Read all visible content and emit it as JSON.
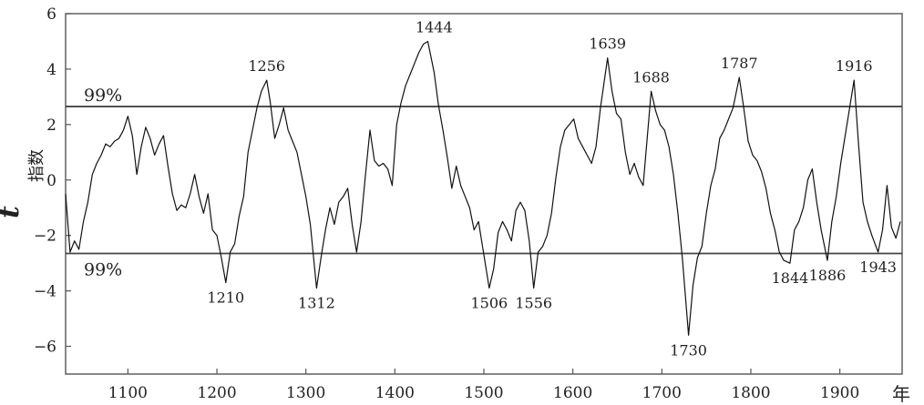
{
  "chart_data": {
    "type": "line",
    "title": "",
    "xlabel": "年",
    "ylabel_t": "t",
    "ylabel_text": "指数",
    "xlim": [
      1030,
      1970
    ],
    "ylim": [
      -7,
      6
    ],
    "x_ticks": [
      1100,
      1200,
      1300,
      1400,
      1500,
      1600,
      1700,
      1800,
      1900
    ],
    "x_tick_labels": [
      "1100",
      "1200",
      "1300",
      "1400",
      "1500",
      "1600",
      "1700",
      "1800",
      "1900"
    ],
    "y_ticks": [
      6,
      4,
      2,
      0,
      -2,
      -4,
      -6
    ],
    "y_tick_labels": [
      "6",
      "4",
      "2",
      "0",
      "−2",
      "−4",
      "−6"
    ],
    "grid": false,
    "reference_lines": [
      {
        "y": 2.65,
        "label": "99%"
      },
      {
        "y": -2.65,
        "label": "99%"
      }
    ],
    "series": [
      {
        "x": [
          1030,
          1035,
          1040,
          1045,
          1050,
          1055,
          1060,
          1065,
          1070,
          1075,
          1080,
          1085,
          1090,
          1095,
          1100,
          1105,
          1110,
          1115,
          1120,
          1125,
          1130,
          1135,
          1140,
          1145,
          1150,
          1155,
          1160,
          1165,
          1170,
          1175,
          1180,
          1185,
          1190,
          1195,
          1200,
          1205,
          1210,
          1215,
          1220,
          1225,
          1230,
          1235,
          1240,
          1245,
          1250,
          1256,
          1260,
          1265,
          1270,
          1275,
          1280,
          1285,
          1290,
          1295,
          1300,
          1305,
          1312,
          1317,
          1322,
          1327,
          1332,
          1337,
          1342,
          1347,
          1352,
          1357,
          1362,
          1367,
          1372,
          1377,
          1382,
          1387,
          1392,
          1397,
          1402,
          1407,
          1412,
          1417,
          1422,
          1427,
          1432,
          1437,
          1444,
          1449,
          1454,
          1459,
          1464,
          1469,
          1474,
          1479,
          1484,
          1489,
          1494,
          1499,
          1506,
          1511,
          1516,
          1521,
          1526,
          1531,
          1536,
          1541,
          1546,
          1551,
          1556,
          1561,
          1566,
          1571,
          1576,
          1581,
          1586,
          1591,
          1596,
          1601,
          1606,
          1611,
          1616,
          1621,
          1626,
          1631,
          1639,
          1644,
          1649,
          1654,
          1659,
          1664,
          1669,
          1674,
          1679,
          1688,
          1693,
          1698,
          1703,
          1708,
          1713,
          1718,
          1723,
          1730,
          1735,
          1740,
          1745,
          1750,
          1755,
          1760,
          1765,
          1770,
          1775,
          1780,
          1787,
          1792,
          1797,
          1802,
          1807,
          1812,
          1817,
          1822,
          1827,
          1832,
          1837,
          1844,
          1849,
          1854,
          1859,
          1864,
          1869,
          1874,
          1879,
          1886,
          1891,
          1896,
          1901,
          1906,
          1911,
          1916,
          1921,
          1926,
          1931,
          1936,
          1943,
          1948,
          1953,
          1958,
          1963,
          1968
        ],
        "y": [
          -0.5,
          -2.6,
          -2.2,
          -2.5,
          -1.5,
          -0.8,
          0.2,
          0.6,
          0.9,
          1.3,
          1.2,
          1.4,
          1.5,
          1.8,
          2.3,
          1.6,
          0.2,
          1.2,
          1.9,
          1.5,
          0.9,
          1.3,
          1.6,
          0.5,
          -0.5,
          -1.1,
          -0.9,
          -1.0,
          -0.5,
          0.2,
          -0.6,
          -1.2,
          -0.5,
          -1.8,
          -2.0,
          -2.8,
          -3.7,
          -2.6,
          -2.3,
          -1.3,
          -0.6,
          1.0,
          1.8,
          2.6,
          3.2,
          3.6,
          2.8,
          1.5,
          2.0,
          2.6,
          1.8,
          1.4,
          1.0,
          0.2,
          -0.6,
          -1.6,
          -3.9,
          -2.8,
          -1.8,
          -1.0,
          -1.6,
          -0.8,
          -0.6,
          -0.3,
          -1.6,
          -2.6,
          -1.5,
          0.2,
          1.8,
          0.7,
          0.5,
          0.6,
          0.4,
          -0.2,
          2.0,
          2.8,
          3.4,
          3.8,
          4.2,
          4.6,
          4.9,
          5.0,
          3.9,
          2.7,
          1.8,
          0.8,
          -0.3,
          0.5,
          -0.2,
          -0.6,
          -1.0,
          -1.8,
          -1.5,
          -2.5,
          -3.9,
          -3.2,
          -1.9,
          -1.5,
          -1.8,
          -2.2,
          -1.1,
          -0.8,
          -1.1,
          -2.2,
          -3.9,
          -2.6,
          -2.4,
          -2.0,
          -1.2,
          0.1,
          1.2,
          1.8,
          2.0,
          2.2,
          1.5,
          1.2,
          0.9,
          0.6,
          1.2,
          2.6,
          4.4,
          3.2,
          2.4,
          2.2,
          1.0,
          0.2,
          0.6,
          0.1,
          -0.2,
          3.2,
          2.5,
          2.0,
          1.8,
          1.2,
          0.2,
          -1.2,
          -2.8,
          -5.6,
          -3.8,
          -2.8,
          -2.4,
          -1.2,
          -0.2,
          0.4,
          1.5,
          1.8,
          2.2,
          2.6,
          3.7,
          2.6,
          1.4,
          0.9,
          0.7,
          0.3,
          -0.3,
          -1.2,
          -1.8,
          -2.6,
          -2.9,
          -3.0,
          -1.8,
          -1.5,
          -1.0,
          0.0,
          0.4,
          -0.8,
          -1.8,
          -2.9,
          -1.5,
          -0.6,
          0.6,
          1.6,
          2.6,
          3.6,
          1.3,
          -0.8,
          -1.5,
          -2.0,
          -2.6,
          -1.8,
          -0.2,
          -1.7,
          -2.1,
          -1.5
        ]
      }
    ],
    "annotations": [
      {
        "label": "1256",
        "x": 1256,
        "y": 3.6,
        "pos": "above"
      },
      {
        "label": "1444",
        "x": 1444,
        "y": 5.0,
        "pos": "above"
      },
      {
        "label": "1639",
        "x": 1639,
        "y": 4.4,
        "pos": "above"
      },
      {
        "label": "1688",
        "x": 1688,
        "y": 3.2,
        "pos": "above"
      },
      {
        "label": "1787",
        "x": 1787,
        "y": 3.7,
        "pos": "above"
      },
      {
        "label": "1916",
        "x": 1916,
        "y": 3.6,
        "pos": "above"
      },
      {
        "label": "1210",
        "x": 1210,
        "y": -3.7,
        "pos": "below"
      },
      {
        "label": "1312",
        "x": 1312,
        "y": -3.9,
        "pos": "below"
      },
      {
        "label": "1506",
        "x": 1506,
        "y": -3.9,
        "pos": "below"
      },
      {
        "label": "1556",
        "x": 1556,
        "y": -3.9,
        "pos": "below"
      },
      {
        "label": "1730",
        "x": 1730,
        "y": -5.6,
        "pos": "below"
      },
      {
        "label": "1844",
        "x": 1844,
        "y": -3.0,
        "pos": "below"
      },
      {
        "label": "1886",
        "x": 1886,
        "y": -2.9,
        "pos": "below"
      },
      {
        "label": "1943",
        "x": 1943,
        "y": -2.6,
        "pos": "below"
      }
    ]
  }
}
